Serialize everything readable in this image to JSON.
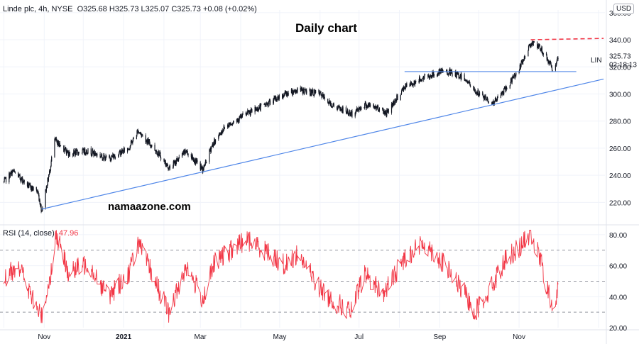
{
  "header": {
    "symbol_line": "Linde plc, 4h, NYSE",
    "open": "O325.68",
    "high": "H325.73",
    "low": "L325.07",
    "close": "C325.73",
    "change": "+0.08 (+0.02%)",
    "currency": "USD"
  },
  "annotations": {
    "title": "Daily chart",
    "watermark": "namaazone.com",
    "symbol_tag": "LIN",
    "last_price": "325.73",
    "countdown": "02:18:13"
  },
  "rsi": {
    "label": "RSI (14, close)",
    "value": "47.96",
    "levels": [
      70,
      50,
      30
    ]
  },
  "colors": {
    "candles": "#131722",
    "trendline": "#4f86e8",
    "resistance_dashed": "#f23645",
    "rsi_line": "#f23645",
    "grid": "#f0f3fa"
  },
  "chart_data": [
    {
      "type": "candlestick",
      "title": "Daily chart",
      "ylim": [
        205,
        362
      ],
      "y_ticks": [
        220,
        240,
        260,
        280,
        300,
        320,
        340,
        360
      ],
      "y_tick_labels": [
        "220.00",
        "240.00",
        "260.00",
        "280.00",
        "300.00",
        "320.00",
        "340.00",
        "360.00"
      ],
      "x_tick_labels": [
        "Nov",
        "2021",
        "Mar",
        "May",
        "Jul",
        "Sep",
        "Nov"
      ],
      "grid": true,
      "price_anchors": [
        {
          "date": "2020-10-01",
          "close": 235
        },
        {
          "date": "2020-10-08",
          "close": 243
        },
        {
          "date": "2020-10-20",
          "close": 232
        },
        {
          "date": "2020-10-27",
          "close": 228
        },
        {
          "date": "2020-10-30",
          "close": 214
        },
        {
          "date": "2020-11-05",
          "close": 242
        },
        {
          "date": "2020-11-09",
          "close": 266
        },
        {
          "date": "2020-11-20",
          "close": 256
        },
        {
          "date": "2020-12-05",
          "close": 258
        },
        {
          "date": "2020-12-20",
          "close": 252
        },
        {
          "date": "2021-01-05",
          "close": 260
        },
        {
          "date": "2021-01-12",
          "close": 273
        },
        {
          "date": "2021-01-28",
          "close": 256
        },
        {
          "date": "2021-02-05",
          "close": 245
        },
        {
          "date": "2021-02-18",
          "close": 258
        },
        {
          "date": "2021-03-03",
          "close": 244
        },
        {
          "date": "2021-03-10",
          "close": 262
        },
        {
          "date": "2021-03-20",
          "close": 276
        },
        {
          "date": "2021-04-05",
          "close": 285
        },
        {
          "date": "2021-04-20",
          "close": 292
        },
        {
          "date": "2021-05-05",
          "close": 300
        },
        {
          "date": "2021-05-15",
          "close": 303
        },
        {
          "date": "2021-06-01",
          "close": 300
        },
        {
          "date": "2021-06-10",
          "close": 292
        },
        {
          "date": "2021-06-25",
          "close": 285
        },
        {
          "date": "2021-07-05",
          "close": 292
        },
        {
          "date": "2021-07-15",
          "close": 290
        },
        {
          "date": "2021-07-22",
          "close": 286
        },
        {
          "date": "2021-08-05",
          "close": 305
        },
        {
          "date": "2021-08-20",
          "close": 312
        },
        {
          "date": "2021-09-05",
          "close": 317
        },
        {
          "date": "2021-09-20",
          "close": 312
        },
        {
          "date": "2021-09-28",
          "close": 302
        },
        {
          "date": "2021-10-12",
          "close": 293
        },
        {
          "date": "2021-10-22",
          "close": 304
        },
        {
          "date": "2021-11-02",
          "close": 320
        },
        {
          "date": "2021-11-10",
          "close": 338
        },
        {
          "date": "2021-11-18",
          "close": 333
        },
        {
          "date": "2021-11-28",
          "close": 317
        },
        {
          "date": "2021-12-01",
          "close": 325.73
        }
      ],
      "lines": [
        {
          "name": "support-trendline",
          "style": "solid",
          "from": {
            "date": "2020-10-30",
            "price": 215
          },
          "to": {
            "date": "2022-01-05",
            "price": 311
          }
        },
        {
          "name": "horizontal-support",
          "style": "solid",
          "from": {
            "date": "2021-08-05",
            "price": 316.5
          },
          "to": {
            "date": "2021-12-15",
            "price": 316.5
          }
        },
        {
          "name": "resistance",
          "style": "dashed",
          "from": {
            "date": "2021-11-10",
            "price": 340
          },
          "to": {
            "date": "2022-01-05",
            "price": 341
          }
        }
      ]
    },
    {
      "type": "line",
      "title": "RSI (14, close)",
      "ylim": [
        20,
        85
      ],
      "y_ticks": [
        20,
        40,
        60,
        80
      ],
      "y_tick_labels": [
        "20.00",
        "40.00",
        "60.00",
        "80.00"
      ],
      "levels": [
        70,
        50,
        30
      ],
      "anchors": [
        {
          "date": "2020-10-01",
          "value": 50
        },
        {
          "date": "2020-10-12",
          "value": 62
        },
        {
          "date": "2020-10-22",
          "value": 40
        },
        {
          "date": "2020-10-30",
          "value": 27
        },
        {
          "date": "2020-11-06",
          "value": 55
        },
        {
          "date": "2020-11-10",
          "value": 80
        },
        {
          "date": "2020-11-20",
          "value": 55
        },
        {
          "date": "2020-12-05",
          "value": 62
        },
        {
          "date": "2020-12-20",
          "value": 40
        },
        {
          "date": "2021-01-05",
          "value": 55
        },
        {
          "date": "2021-01-12",
          "value": 75
        },
        {
          "date": "2021-01-28",
          "value": 45
        },
        {
          "date": "2021-02-05",
          "value": 29
        },
        {
          "date": "2021-02-18",
          "value": 60
        },
        {
          "date": "2021-03-03",
          "value": 38
        },
        {
          "date": "2021-03-12",
          "value": 62
        },
        {
          "date": "2021-03-25",
          "value": 70
        },
        {
          "date": "2021-04-05",
          "value": 77
        },
        {
          "date": "2021-04-20",
          "value": 70
        },
        {
          "date": "2021-05-05",
          "value": 60
        },
        {
          "date": "2021-05-15",
          "value": 68
        },
        {
          "date": "2021-06-01",
          "value": 45
        },
        {
          "date": "2021-06-10",
          "value": 38
        },
        {
          "date": "2021-06-25",
          "value": 30
        },
        {
          "date": "2021-07-05",
          "value": 55
        },
        {
          "date": "2021-07-20",
          "value": 42
        },
        {
          "date": "2021-08-05",
          "value": 65
        },
        {
          "date": "2021-08-20",
          "value": 75
        },
        {
          "date": "2021-09-05",
          "value": 60
        },
        {
          "date": "2021-09-20",
          "value": 42
        },
        {
          "date": "2021-09-28",
          "value": 30
        },
        {
          "date": "2021-10-12",
          "value": 48
        },
        {
          "date": "2021-10-22",
          "value": 65
        },
        {
          "date": "2021-11-02",
          "value": 72
        },
        {
          "date": "2021-11-10",
          "value": 81
        },
        {
          "date": "2021-11-18",
          "value": 62
        },
        {
          "date": "2021-11-28",
          "value": 27
        },
        {
          "date": "2021-12-01",
          "value": 47.96
        }
      ]
    }
  ]
}
